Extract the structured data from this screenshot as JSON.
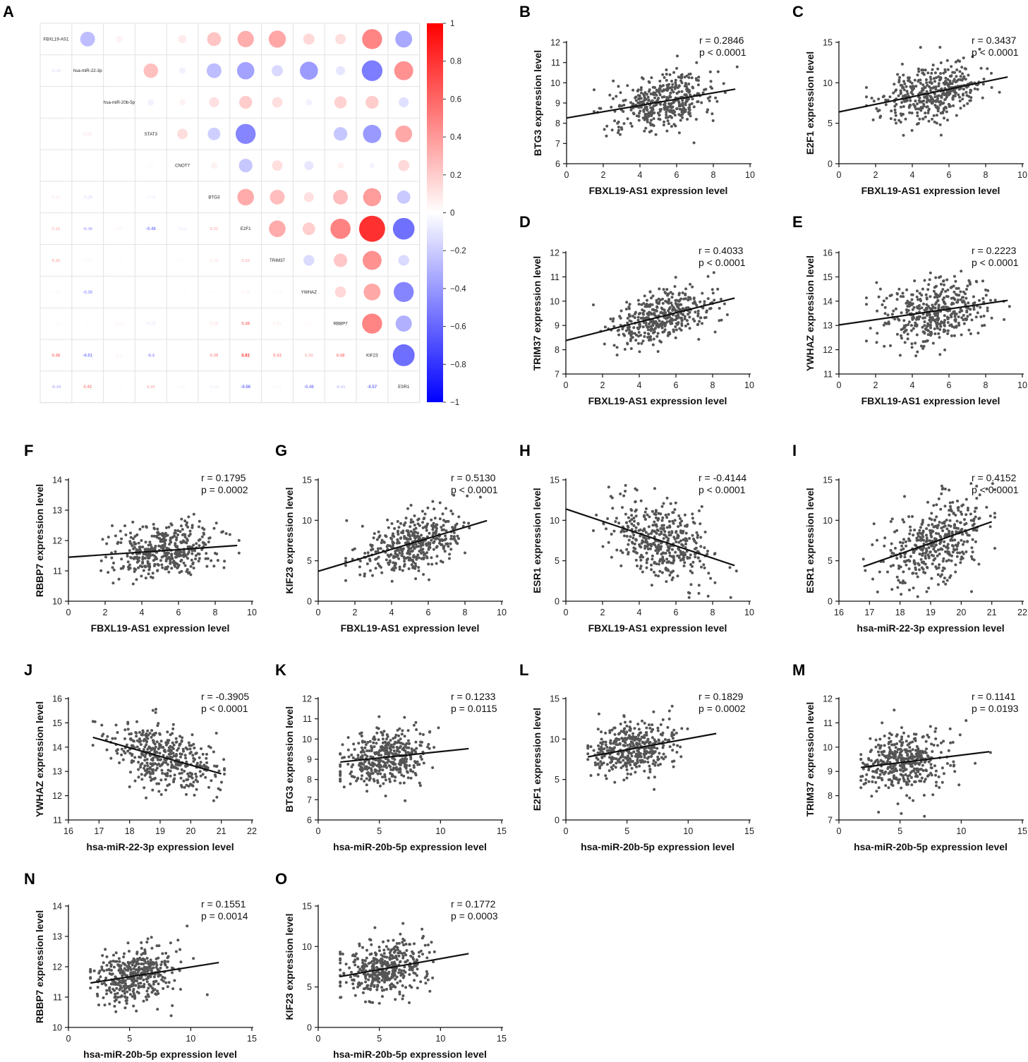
{
  "figure": {
    "colors": {
      "positive": "#ff0000",
      "negative": "#0000ff",
      "point": "#555555",
      "line": "#111111",
      "grid": "#dddddd"
    }
  },
  "chart_data": [
    {
      "panel": "A",
      "type": "heatmap",
      "variant": "correlation-matrix",
      "labels": [
        "FBXL19-AS1",
        "hsa-miR-22-3p",
        "hsa-miR-20b-5p",
        "STAT3",
        "CNOT7",
        "BTG3",
        "E2F1",
        "TRIM37",
        "YWHAZ",
        "RBBP7",
        "KIF23",
        "ESR1"
      ],
      "matrix": [
        [
          1,
          -0.26,
          0.05,
          0.01,
          0.08,
          0.23,
          0.32,
          0.35,
          0.15,
          0.13,
          0.48,
          -0.34
        ],
        [
          -0.26,
          1,
          0.01,
          0.25,
          -0.05,
          -0.26,
          -0.36,
          -0.15,
          -0.39,
          -0.1,
          -0.51,
          0.43
        ],
        [
          0.05,
          0.01,
          1,
          -0.05,
          0.05,
          0.12,
          0.2,
          0.13,
          -0.05,
          0.18,
          0.2,
          -0.12
        ],
        [
          0.01,
          0.25,
          -0.05,
          1,
          0.13,
          -0.19,
          -0.48,
          0,
          0,
          -0.22,
          -0.4,
          0.34
        ],
        [
          0.08,
          -0.05,
          0.05,
          0.13,
          1,
          0.05,
          -0.22,
          0.13,
          -0.1,
          0.05,
          -0.04,
          0.15
        ],
        [
          0.23,
          -0.26,
          0.12,
          -0.19,
          0.05,
          1,
          0.33,
          0.26,
          0.12,
          0.26,
          0.39,
          -0.21
        ],
        [
          0.32,
          -0.36,
          0.2,
          -0.48,
          -0.22,
          0.33,
          1,
          0.33,
          0.19,
          0.49,
          0.81,
          -0.56
        ],
        [
          0.35,
          -0.15,
          0.13,
          0,
          0.13,
          0.26,
          0.33,
          1,
          -0.14,
          0.22,
          0.43,
          -0.14
        ],
        [
          0.15,
          -0.39,
          -0.05,
          0,
          -0.1,
          0.12,
          0.19,
          -0.14,
          1,
          0.15,
          0.34,
          -0.48
        ],
        [
          0.13,
          -0.1,
          0.18,
          -0.22,
          0.05,
          0.26,
          0.49,
          0.22,
          0.15,
          1,
          0.48,
          -0.31
        ],
        [
          0.48,
          -0.51,
          0.2,
          -0.4,
          -0.04,
          0.39,
          0.81,
          0.43,
          0.34,
          0.48,
          1,
          -0.57
        ],
        [
          -0.34,
          0.43,
          -0.12,
          0.34,
          0.15,
          -0.21,
          -0.56,
          -0.14,
          -0.48,
          -0.31,
          -0.57,
          1
        ]
      ],
      "lower_labels": [
        [
          "-0.26"
        ],
        [
          "0.05",
          "0.01"
        ],
        [
          "0.01",
          "0.25",
          "-0.05"
        ],
        [
          "0.08",
          "-0.05",
          "0.05",
          "0.13"
        ],
        [
          "0.23",
          "-0.26",
          "0.12",
          "-0.19",
          "0.05"
        ],
        [
          "0.32",
          "-0.36",
          "0.2",
          "-0.48",
          "-0.22",
          "0.33"
        ],
        [
          "0.35",
          "-0.15",
          "0.13",
          "0",
          "0.13",
          "0.26",
          "0.33"
        ],
        [
          "0.15",
          "-0.39",
          "-0.05",
          "0",
          "-0.1",
          "0.12",
          "0.19",
          "-0.14"
        ],
        [
          "0.13",
          "-0.1",
          "0.18",
          "-0.22",
          "0.05",
          "0.26",
          "0.49",
          "0.22",
          "0.15"
        ],
        [
          "0.48",
          "-0.51",
          "0.2",
          "-0.4",
          "-0.04",
          "0.39",
          "0.81",
          "0.43",
          "0.34",
          "0.48"
        ],
        [
          "-0.34",
          "0.43",
          "-0.12",
          "0.34",
          "0.15",
          "-0.21",
          "-0.56",
          "-0.14",
          "-0.48",
          "-0.31",
          "-0.57"
        ]
      ],
      "colorbar": {
        "range": [
          -1,
          1
        ],
        "ticks": [
          "1",
          "0.8",
          "0.6",
          "0.4",
          "0.2",
          "0",
          "−0.2",
          "−0.4",
          "−0.6",
          "−0.8",
          "−1"
        ]
      }
    },
    {
      "panel": "B",
      "type": "scatter",
      "xlabel": "FBXL19-AS1 expression level",
      "ylabel": "BTG3 expression level",
      "xlim": [
        0,
        10
      ],
      "ylim": [
        6,
        12
      ],
      "xticks": [
        0,
        2,
        4,
        6,
        8,
        10
      ],
      "yticks": [
        6,
        7,
        8,
        9,
        10,
        11,
        12
      ],
      "r_text": "r = 0.2846",
      "p_text": "p < 0.0001",
      "fit": {
        "slope": 0.155,
        "intercept": 8.26,
        "x_range": [
          0,
          9.2
        ]
      },
      "points_summary": {
        "n": 420,
        "x_mean": 5.2,
        "x_sd": 1.4,
        "x_range": [
          1.5,
          9.3
        ],
        "y_sd": 0.65
      }
    },
    {
      "panel": "C",
      "type": "scatter",
      "xlabel": "FBXL19-AS1 expression level",
      "ylabel": "E2F1 expression level",
      "xlim": [
        0,
        10
      ],
      "ylim": [
        0,
        15
      ],
      "xticks": [
        0,
        2,
        4,
        6,
        8,
        10
      ],
      "yticks": [
        0,
        5,
        10,
        15
      ],
      "r_text": "r = 0.3437",
      "p_text": "p < 0.0001",
      "fit": {
        "slope": 0.47,
        "intercept": 6.4,
        "x_range": [
          0,
          9.2
        ]
      },
      "points_summary": {
        "n": 420,
        "x_mean": 5.2,
        "x_sd": 1.4,
        "x_range": [
          1.5,
          9.3
        ],
        "y_sd": 1.7
      }
    },
    {
      "panel": "D",
      "type": "scatter",
      "xlabel": "FBXL19-AS1 expression level",
      "ylabel": "TRIM37 expression level",
      "xlim": [
        0,
        10
      ],
      "ylim": [
        7,
        12
      ],
      "xticks": [
        0,
        2,
        4,
        6,
        8,
        10
      ],
      "yticks": [
        7,
        8,
        9,
        10,
        11,
        12
      ],
      "r_text": "r = 0.4033",
      "p_text": "p < 0.0001",
      "fit": {
        "slope": 0.19,
        "intercept": 8.38,
        "x_range": [
          0,
          9.2
        ]
      },
      "points_summary": {
        "n": 420,
        "x_mean": 5.2,
        "x_sd": 1.4,
        "x_range": [
          1.5,
          9.3
        ],
        "y_sd": 0.55
      }
    },
    {
      "panel": "E",
      "type": "scatter",
      "xlabel": "FBXL19-AS1 expression level",
      "ylabel": "YWHAZ expression level",
      "xlim": [
        0,
        10
      ],
      "ylim": [
        11,
        16
      ],
      "xticks": [
        0,
        2,
        4,
        6,
        8,
        10
      ],
      "yticks": [
        11,
        12,
        13,
        14,
        15,
        16
      ],
      "r_text": "r = 0.2223",
      "p_text": "p < 0.0001",
      "fit": {
        "slope": 0.11,
        "intercept": 13.02,
        "x_range": [
          0,
          9.2
        ]
      },
      "points_summary": {
        "n": 420,
        "x_mean": 5.2,
        "x_sd": 1.4,
        "x_range": [
          1.5,
          9.3
        ],
        "y_sd": 0.65
      }
    },
    {
      "panel": "F",
      "type": "scatter",
      "xlabel": "FBXL19-AS1 expression level",
      "ylabel": "RBBP7 expression level",
      "xlim": [
        0,
        10
      ],
      "ylim": [
        10,
        14
      ],
      "xticks": [
        0,
        2,
        4,
        6,
        8,
        10
      ],
      "yticks": [
        10,
        11,
        12,
        13,
        14
      ],
      "r_text": "r = 0.1795",
      "p_text": "p = 0.0002",
      "fit": {
        "slope": 0.042,
        "intercept": 11.45,
        "x_range": [
          0,
          9.2
        ]
      },
      "points_summary": {
        "n": 420,
        "x_mean": 5.2,
        "x_sd": 1.4,
        "x_range": [
          1.5,
          9.3
        ],
        "y_sd": 0.45
      }
    },
    {
      "panel": "G",
      "type": "scatter",
      "xlabel": "FBXL19-AS1 expression level",
      "ylabel": "KIF23 expression level",
      "xlim": [
        0,
        10
      ],
      "ylim": [
        0,
        15
      ],
      "xticks": [
        0,
        2,
        4,
        6,
        8,
        10
      ],
      "yticks": [
        0,
        5,
        10,
        15
      ],
      "r_text": "r = 0.5130",
      "p_text": "p < 0.0001",
      "fit": {
        "slope": 0.68,
        "intercept": 3.7,
        "x_range": [
          0,
          9.2
        ]
      },
      "points_summary": {
        "n": 420,
        "x_mean": 5.2,
        "x_sd": 1.4,
        "x_range": [
          1.5,
          9.3
        ],
        "y_sd": 1.7
      }
    },
    {
      "panel": "H",
      "type": "scatter",
      "xlabel": "FBXL19-AS1 expression level",
      "ylabel": "ESR1 expression level",
      "xlim": [
        0,
        10
      ],
      "ylim": [
        0,
        15
      ],
      "xticks": [
        0,
        2,
        4,
        6,
        8,
        10
      ],
      "yticks": [
        0,
        5,
        10,
        15
      ],
      "r_text": "r = -0.4144",
      "p_text": "p < 0.0001",
      "fit": {
        "slope": -0.76,
        "intercept": 11.4,
        "x_range": [
          0,
          9.2
        ]
      },
      "points_summary": {
        "n": 420,
        "x_mean": 5.2,
        "x_sd": 1.4,
        "x_range": [
          1.5,
          9.3
        ],
        "y_sd": 2.4
      }
    },
    {
      "panel": "I",
      "type": "scatter",
      "xlabel": "hsa-miR-22-3p expression level",
      "ylabel": "ESR1 expression level",
      "xlim": [
        16,
        22
      ],
      "ylim": [
        0,
        15
      ],
      "xticks": [
        16,
        17,
        18,
        19,
        20,
        21,
        22
      ],
      "yticks": [
        0,
        5,
        10,
        15
      ],
      "r_text": "r = 0.4152",
      "p_text": "p < 0.0001",
      "fit": {
        "slope": 1.32,
        "intercept": -17.9,
        "x_range": [
          16.8,
          21
        ]
      },
      "points_summary": {
        "n": 420,
        "x_mean": 19.2,
        "x_sd": 0.85,
        "x_range": [
          16.8,
          21.1
        ],
        "y_sd": 2.4
      }
    },
    {
      "panel": "J",
      "type": "scatter",
      "xlabel": "hsa-miR-22-3p expression level",
      "ylabel": "YWHAZ expression level",
      "xlim": [
        16,
        22
      ],
      "ylim": [
        11,
        16
      ],
      "xticks": [
        16,
        17,
        18,
        19,
        20,
        21,
        22
      ],
      "yticks": [
        11,
        12,
        13,
        14,
        15,
        16
      ],
      "r_text": "r = -0.3905",
      "p_text": "p < 0.0001",
      "fit": {
        "slope": -0.357,
        "intercept": 20.4,
        "x_range": [
          16.8,
          21
        ]
      },
      "points_summary": {
        "n": 420,
        "x_mean": 19.2,
        "x_sd": 0.85,
        "x_range": [
          16.8,
          21.1
        ],
        "y_sd": 0.6
      }
    },
    {
      "panel": "K",
      "type": "scatter",
      "xlabel": "hsa-miR-20b-5p expression level",
      "ylabel": "BTG3 expression level",
      "xlim": [
        0,
        15
      ],
      "ylim": [
        6,
        12
      ],
      "xticks": [
        0,
        5,
        10,
        15
      ],
      "yticks": [
        6,
        7,
        8,
        9,
        10,
        11,
        12
      ],
      "r_text": "r = 0.1233",
      "p_text": "p = 0.0115",
      "fit": {
        "slope": 0.063,
        "intercept": 8.75,
        "x_range": [
          1.8,
          12.3
        ]
      },
      "points_summary": {
        "n": 420,
        "x_mean": 5.4,
        "x_sd": 1.7,
        "x_range": [
          1.8,
          12.4
        ],
        "y_sd": 0.7
      }
    },
    {
      "panel": "L",
      "type": "scatter",
      "xlabel": "hsa-miR-20b-5p expression level",
      "ylabel": "E2F1 expression level",
      "xlim": [
        0,
        15
      ],
      "ylim": [
        0,
        15
      ],
      "xticks": [
        0,
        5,
        10,
        15
      ],
      "yticks": [
        0,
        5,
        10,
        15
      ],
      "r_text": "r = 0.1829",
      "p_text": "p = 0.0002",
      "fit": {
        "slope": 0.275,
        "intercept": 7.3,
        "x_range": [
          1.8,
          12.3
        ]
      },
      "points_summary": {
        "n": 420,
        "x_mean": 5.4,
        "x_sd": 1.7,
        "x_range": [
          1.8,
          12.4
        ],
        "y_sd": 1.7
      }
    },
    {
      "panel": "M",
      "type": "scatter",
      "xlabel": "hsa-miR-20b-5p expression level",
      "ylabel": "TRIM37 expression level",
      "xlim": [
        0,
        15
      ],
      "ylim": [
        7,
        12
      ],
      "xticks": [
        0,
        5,
        10,
        15
      ],
      "yticks": [
        7,
        8,
        9,
        10,
        11,
        12
      ],
      "r_text": "r = 0.1141",
      "p_text": "p = 0.0193",
      "fit": {
        "slope": 0.062,
        "intercept": 9.05,
        "x_range": [
          1.8,
          12.3
        ]
      },
      "points_summary": {
        "n": 420,
        "x_mean": 5.4,
        "x_sd": 1.7,
        "x_range": [
          1.8,
          12.4
        ],
        "y_sd": 0.6
      }
    },
    {
      "panel": "N",
      "type": "scatter",
      "xlabel": "hsa-miR-20b-5p expression level",
      "ylabel": "RBBP7 expression level",
      "xlim": [
        0,
        15
      ],
      "ylim": [
        10,
        14
      ],
      "xticks": [
        0,
        5,
        10,
        15
      ],
      "yticks": [
        10,
        11,
        12,
        13,
        14
      ],
      "r_text": "r = 0.1551",
      "p_text": "p = 0.0014",
      "fit": {
        "slope": 0.064,
        "intercept": 11.35,
        "x_range": [
          1.8,
          12.3
        ]
      },
      "points_summary": {
        "n": 420,
        "x_mean": 5.4,
        "x_sd": 1.7,
        "x_range": [
          1.8,
          12.4
        ],
        "y_sd": 0.45
      }
    },
    {
      "panel": "O",
      "type": "scatter",
      "xlabel": "hsa-miR-20b-5p expression level",
      "ylabel": "KIF23 expression level",
      "xlim": [
        0,
        15
      ],
      "ylim": [
        0,
        15
      ],
      "xticks": [
        0,
        5,
        10,
        15
      ],
      "yticks": [
        0,
        5,
        10,
        15
      ],
      "r_text": "r = 0.1772",
      "p_text": "p = 0.0003",
      "fit": {
        "slope": 0.27,
        "intercept": 5.8,
        "x_range": [
          1.8,
          12.3
        ]
      },
      "points_summary": {
        "n": 420,
        "x_mean": 5.4,
        "x_sd": 1.7,
        "x_range": [
          1.8,
          12.4
        ],
        "y_sd": 1.7
      }
    }
  ]
}
